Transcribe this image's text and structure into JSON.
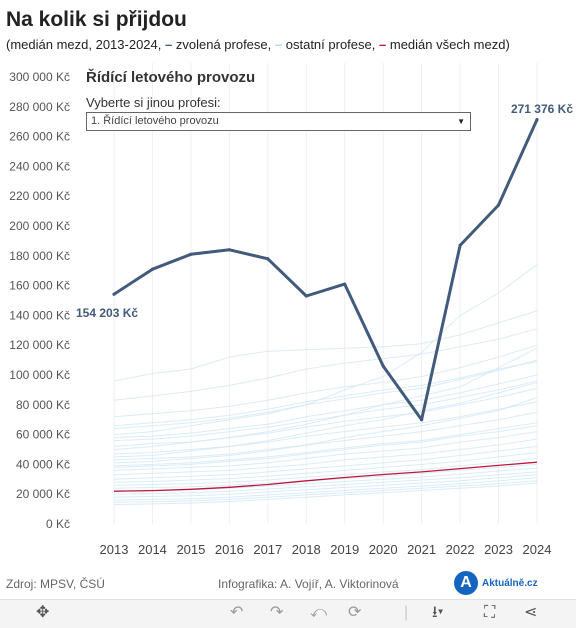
{
  "header": {
    "title": "Na kolik si přijdou",
    "subtitle_prefix": "(medián mezd, 2013-2024,",
    "legend_selected": "zvolená profese,",
    "legend_other": "ostatní profese,",
    "legend_median": "medián všech mezd)"
  },
  "selector": {
    "profile_title": "Řídící letového provozu",
    "label": "Vyberte si jinou profesi:",
    "value": "1. Řídící letového provozu"
  },
  "annotations": {
    "start_value": "154 203 Kč",
    "end_value": "271 376 Kč"
  },
  "footer": {
    "source": "Zdroj: MPSV, ČSÚ",
    "credit": "Infografika: A. Vojíř, A. Viktorinová",
    "logo_letter": "A",
    "logo_text": "Aktuálně.cz"
  },
  "colors": {
    "selected": "#425a7b",
    "other": "#cde6f7",
    "median": "#c0163a",
    "brand": "#1565c0"
  },
  "toolbar": {
    "icons": [
      "move-icon",
      "undo-icon",
      "redo-icon",
      "revert-icon",
      "refresh-icon",
      "download-icon",
      "fullscreen-icon",
      "share-icon"
    ]
  },
  "chart_data": {
    "type": "line",
    "x": [
      2013,
      2014,
      2015,
      2016,
      2017,
      2018,
      2019,
      2020,
      2021,
      2022,
      2023,
      2024
    ],
    "ylim": [
      0,
      300000
    ],
    "yticks": [
      0,
      20000,
      40000,
      60000,
      80000,
      100000,
      120000,
      140000,
      160000,
      180000,
      200000,
      220000,
      240000,
      260000,
      280000,
      300000
    ],
    "ytick_labels": [
      "0 Kč",
      "20 000 Kč",
      "40 000 Kč",
      "60 000 Kč",
      "80 000 Kč",
      "100 000 Kč",
      "120 000 Kč",
      "140 000 Kč",
      "160 000 Kč",
      "180 000 Kč",
      "200 000 Kč",
      "220 000 Kč",
      "240 000 Kč",
      "260 000 Kč",
      "280 000 Kč",
      "300 000 Kč"
    ],
    "grid": "vertical",
    "series": [
      {
        "name": "Řídící letového provozu",
        "values": [
          154203,
          171000,
          181000,
          184000,
          178000,
          153000,
          161000,
          106000,
          70000,
          187000,
          214000,
          271376
        ]
      },
      {
        "values": [
          22000,
          22400,
          23300,
          24600,
          26500,
          29000,
          31200,
          33200,
          35000,
          37200,
          39300,
          41500
        ]
      },
      {
        "values": [
          96000,
          101000,
          104000,
          112000,
          116000,
          117000,
          118000,
          119000,
          121000,
          127000,
          135000,
          143000
        ]
      },
      {
        "values": [
          83000,
          86000,
          89000,
          93000,
          98000,
          104000,
          108000,
          111000,
          114000,
          119000,
          124000,
          131000
        ]
      },
      {
        "values": [
          72000,
          74000,
          76000,
          79000,
          83000,
          88000,
          92000,
          95000,
          99000,
          105000,
          112000,
          120000
        ]
      },
      {
        "values": [
          64000,
          66000,
          68000,
          71000,
          75000,
          80000,
          84000,
          88000,
          91000,
          97000,
          103000,
          110000
        ]
      },
      {
        "values": [
          58000,
          59000,
          61000,
          64000,
          67000,
          72000,
          76000,
          80000,
          83000,
          88000,
          94000,
          100000
        ]
      },
      {
        "values": [
          52000,
          54000,
          55000,
          58000,
          61000,
          65000,
          69000,
          72000,
          75000,
          80000,
          85000,
          91000
        ]
      },
      {
        "values": [
          47000,
          48000,
          50000,
          52000,
          55000,
          59000,
          62000,
          65000,
          68000,
          72000,
          77000,
          82000
        ]
      },
      {
        "values": [
          43000,
          44000,
          45000,
          47000,
          50000,
          53000,
          56000,
          59000,
          62000,
          66000,
          70000,
          75000
        ]
      },
      {
        "values": [
          39000,
          40000,
          41000,
          43000,
          45000,
          48000,
          51000,
          54000,
          56000,
          60000,
          64000,
          68000
        ]
      },
      {
        "values": [
          36000,
          37000,
          38000,
          39000,
          41000,
          44000,
          47000,
          49000,
          51000,
          55000,
          58000,
          62000
        ]
      },
      {
        "values": [
          33000,
          34000,
          35000,
          36000,
          38000,
          40000,
          43000,
          45000,
          47000,
          50000,
          53000,
          57000
        ]
      },
      {
        "values": [
          30000,
          31000,
          32000,
          33000,
          35000,
          37000,
          39000,
          41000,
          43000,
          46000,
          49000,
          52000
        ]
      },
      {
        "values": [
          28000,
          28500,
          29500,
          30500,
          32000,
          34000,
          36000,
          38000,
          40000,
          42000,
          45000,
          48000
        ]
      },
      {
        "values": [
          26000,
          26500,
          27000,
          28000,
          29500,
          31500,
          33000,
          35000,
          36500,
          39000,
          41500,
          44000
        ]
      },
      {
        "values": [
          24000,
          24500,
          25000,
          26000,
          27500,
          29000,
          30500,
          32000,
          34000,
          36000,
          38000,
          40000
        ]
      },
      {
        "values": [
          22000,
          22500,
          23000,
          24000,
          25500,
          27000,
          28500,
          30000,
          31500,
          33500,
          35500,
          37500
        ]
      },
      {
        "values": [
          20000,
          20500,
          21000,
          22000,
          23500,
          25000,
          26500,
          28000,
          29500,
          31000,
          33000,
          35000
        ]
      },
      {
        "values": [
          18000,
          18500,
          19000,
          20000,
          21500,
          23000,
          24500,
          26000,
          27500,
          29000,
          31000,
          33000
        ]
      },
      {
        "values": [
          16000,
          16500,
          17000,
          18000,
          19500,
          21000,
          22500,
          24000,
          25500,
          27000,
          29000,
          31000
        ]
      },
      {
        "values": [
          14500,
          15000,
          15500,
          16500,
          18000,
          19500,
          21000,
          22500,
          24000,
          25500,
          27000,
          29000
        ]
      },
      {
        "values": [
          13000,
          13500,
          14000,
          15000,
          16500,
          18000,
          19500,
          21000,
          22500,
          24000,
          25500,
          27500
        ]
      },
      {
        "values": [
          60000,
          62000,
          66000,
          70000,
          74000,
          80000,
          90000,
          99000,
          115000,
          140000,
          155000,
          174000
        ]
      },
      {
        "values": [
          50000,
          52000,
          55000,
          58000,
          62000,
          67000,
          73000,
          80000,
          86000,
          92000,
          105000,
          118000
        ]
      },
      {
        "values": [
          45000,
          46000,
          49000,
          52000,
          56000,
          61000,
          66000,
          70000,
          76000,
          81000,
          88000,
          95000
        ]
      },
      {
        "values": [
          41000,
          42000,
          44000,
          46000,
          49000,
          53000,
          58000,
          62000,
          66000,
          71000,
          76000,
          85000
        ]
      },
      {
        "values": [
          66000,
          68000,
          70000,
          73000,
          77000,
          82000,
          86000,
          90000,
          93000,
          98000,
          104000,
          109000
        ]
      },
      {
        "values": [
          56000,
          57000,
          59000,
          62000,
          65000,
          69000,
          73000,
          77000,
          80000,
          85000,
          90000,
          96000
        ]
      },
      {
        "values": [
          38000,
          39000,
          40000,
          42000,
          44000,
          47000,
          50000,
          53000,
          55000,
          59000,
          62000,
          66000
        ]
      }
    ]
  }
}
